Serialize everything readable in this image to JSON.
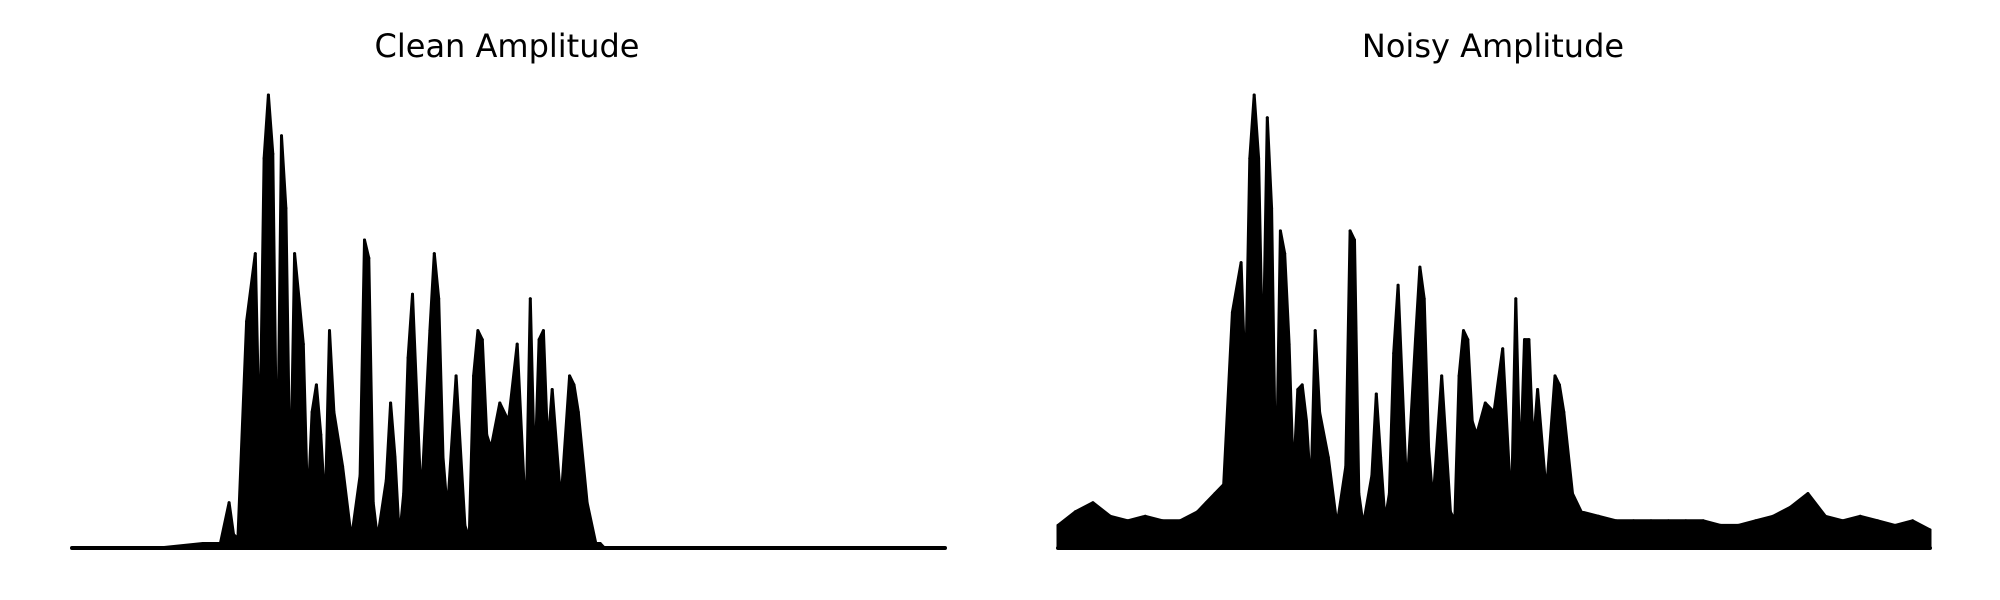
{
  "chart_data": [
    {
      "type": "area",
      "title": "Clean Amplitude",
      "xlabel": "",
      "ylabel": "",
      "xlim": [
        0,
        1
      ],
      "ylim": [
        0,
        1
      ],
      "axes_visible": false,
      "grid": false,
      "color": "#000000",
      "x": [
        0.0,
        0.05,
        0.1,
        0.15,
        0.17,
        0.18,
        0.185,
        0.19,
        0.2,
        0.21,
        0.215,
        0.22,
        0.225,
        0.23,
        0.235,
        0.24,
        0.245,
        0.25,
        0.255,
        0.26,
        0.265,
        0.27,
        0.275,
        0.28,
        0.285,
        0.29,
        0.295,
        0.3,
        0.31,
        0.32,
        0.33,
        0.335,
        0.34,
        0.345,
        0.35,
        0.36,
        0.365,
        0.37,
        0.375,
        0.38,
        0.385,
        0.39,
        0.4,
        0.41,
        0.415,
        0.42,
        0.425,
        0.43,
        0.44,
        0.45,
        0.455,
        0.46,
        0.465,
        0.47,
        0.475,
        0.48,
        0.49,
        0.5,
        0.51,
        0.52,
        0.525,
        0.53,
        0.535,
        0.54,
        0.545,
        0.55,
        0.56,
        0.57,
        0.575,
        0.58,
        0.59,
        0.6,
        0.605,
        0.61,
        0.615,
        0.62,
        0.625,
        0.63,
        0.64,
        0.65,
        0.66,
        0.67,
        0.68,
        0.685,
        0.69,
        0.7,
        0.71,
        0.72,
        0.73,
        0.74,
        0.75,
        0.76,
        0.78,
        0.8,
        0.85,
        0.9,
        0.95,
        1.0
      ],
      "values": [
        0.0,
        0.0,
        0.0,
        0.01,
        0.01,
        0.1,
        0.03,
        0.02,
        0.5,
        0.65,
        0.2,
        0.86,
        1.0,
        0.87,
        0.1,
        0.91,
        0.75,
        0.1,
        0.65,
        0.55,
        0.45,
        0.08,
        0.3,
        0.36,
        0.25,
        0.08,
        0.48,
        0.3,
        0.18,
        0.02,
        0.16,
        0.68,
        0.64,
        0.1,
        0.02,
        0.15,
        0.32,
        0.2,
        0.02,
        0.12,
        0.42,
        0.56,
        0.1,
        0.48,
        0.65,
        0.55,
        0.2,
        0.08,
        0.38,
        0.05,
        0.02,
        0.38,
        0.48,
        0.46,
        0.25,
        0.22,
        0.32,
        0.28,
        0.45,
        0.05,
        0.55,
        0.15,
        0.46,
        0.48,
        0.22,
        0.35,
        0.1,
        0.38,
        0.36,
        0.3,
        0.1,
        0.01,
        0.01,
        0.0,
        0.0,
        0.0,
        0.0,
        0.0,
        0.0,
        0.0,
        0.0,
        0.0,
        0.0,
        0.0,
        0.0,
        0.0,
        0.0,
        0.0,
        0.0,
        0.0,
        0.0,
        0.0,
        0.0,
        0.0,
        0.0,
        0.0,
        0.0,
        0.0
      ]
    },
    {
      "type": "area",
      "title": "Noisy Amplitude",
      "xlabel": "",
      "ylabel": "",
      "xlim": [
        0,
        1
      ],
      "ylim": [
        0,
        1
      ],
      "axes_visible": false,
      "grid": false,
      "color": "#000000",
      "x": [
        0.0,
        0.02,
        0.04,
        0.06,
        0.08,
        0.1,
        0.12,
        0.14,
        0.16,
        0.17,
        0.18,
        0.19,
        0.2,
        0.21,
        0.215,
        0.22,
        0.225,
        0.23,
        0.235,
        0.24,
        0.245,
        0.25,
        0.255,
        0.26,
        0.265,
        0.27,
        0.275,
        0.28,
        0.285,
        0.29,
        0.295,
        0.3,
        0.31,
        0.32,
        0.33,
        0.335,
        0.34,
        0.345,
        0.35,
        0.36,
        0.365,
        0.37,
        0.375,
        0.38,
        0.385,
        0.39,
        0.4,
        0.41,
        0.415,
        0.42,
        0.425,
        0.43,
        0.44,
        0.45,
        0.455,
        0.46,
        0.465,
        0.47,
        0.475,
        0.48,
        0.49,
        0.5,
        0.51,
        0.52,
        0.525,
        0.53,
        0.535,
        0.54,
        0.545,
        0.55,
        0.56,
        0.57,
        0.575,
        0.58,
        0.59,
        0.6,
        0.62,
        0.64,
        0.66,
        0.68,
        0.7,
        0.72,
        0.74,
        0.76,
        0.78,
        0.8,
        0.82,
        0.84,
        0.86,
        0.88,
        0.9,
        0.92,
        0.94,
        0.96,
        0.98,
        1.0
      ],
      "values": [
        0.05,
        0.08,
        0.1,
        0.07,
        0.06,
        0.07,
        0.06,
        0.06,
        0.08,
        0.1,
        0.12,
        0.14,
        0.52,
        0.63,
        0.35,
        0.86,
        1.0,
        0.86,
        0.38,
        0.95,
        0.75,
        0.1,
        0.7,
        0.65,
        0.45,
        0.15,
        0.35,
        0.36,
        0.28,
        0.12,
        0.48,
        0.3,
        0.2,
        0.05,
        0.18,
        0.7,
        0.68,
        0.12,
        0.05,
        0.16,
        0.34,
        0.2,
        0.06,
        0.12,
        0.43,
        0.58,
        0.12,
        0.46,
        0.62,
        0.55,
        0.22,
        0.1,
        0.38,
        0.08,
        0.06,
        0.38,
        0.48,
        0.46,
        0.28,
        0.25,
        0.32,
        0.3,
        0.44,
        0.08,
        0.55,
        0.16,
        0.46,
        0.46,
        0.22,
        0.35,
        0.12,
        0.38,
        0.36,
        0.3,
        0.12,
        0.08,
        0.07,
        0.06,
        0.06,
        0.06,
        0.06,
        0.06,
        0.06,
        0.05,
        0.05,
        0.06,
        0.07,
        0.09,
        0.12,
        0.07,
        0.06,
        0.07,
        0.06,
        0.05,
        0.06,
        0.04
      ]
    }
  ]
}
